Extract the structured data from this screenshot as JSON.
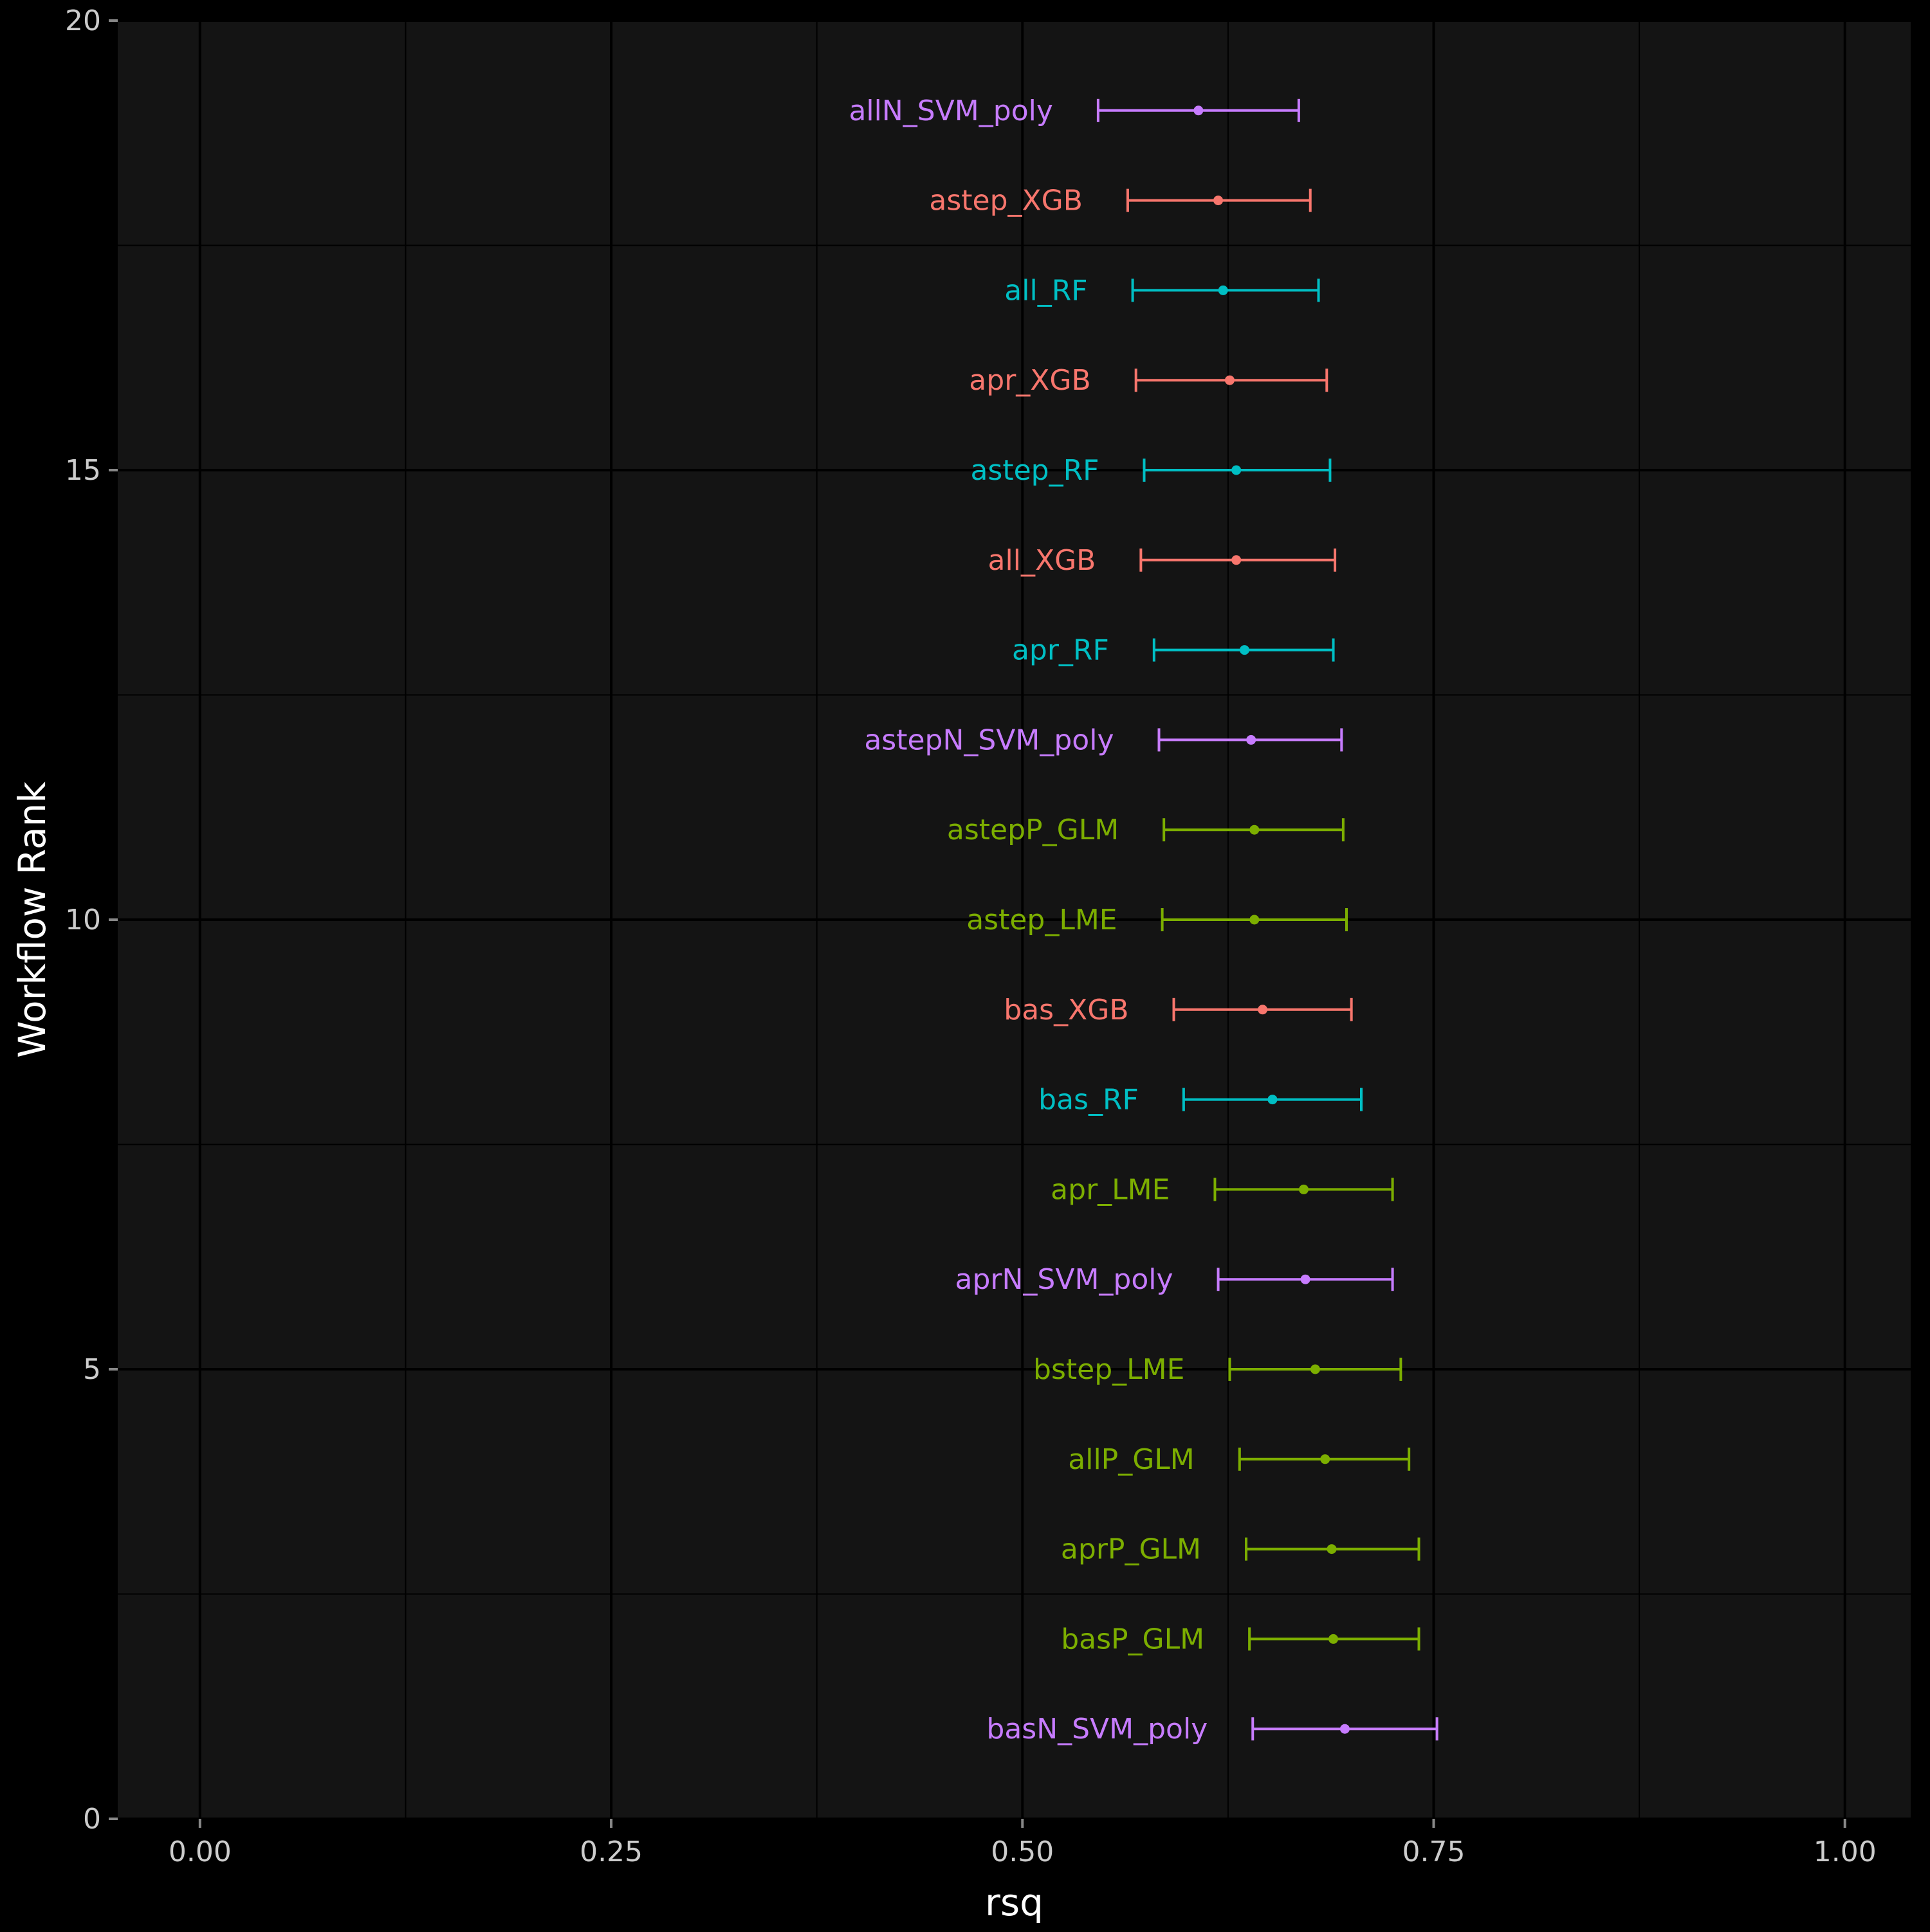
{
  "chart_data": {
    "type": "scatter",
    "subtype": "point-with-error-bars",
    "xlabel": "rsq",
    "ylabel": "Workflow Rank",
    "xlim": [
      -0.05,
      1.04
    ],
    "ylim": [
      0,
      20
    ],
    "x_ticks": [
      0.0,
      0.25,
      0.5,
      0.75,
      1.0
    ],
    "x_tick_labels": [
      "0.00",
      "0.25",
      "0.50",
      "0.75",
      "1.00"
    ],
    "y_ticks": [
      0,
      5,
      10,
      15,
      20
    ],
    "y_tick_labels": [
      "0",
      "5",
      "10",
      "15",
      "20"
    ],
    "grid": true,
    "legend": "none",
    "colors": {
      "XGB": "#F8766D",
      "RF": "#00BFC4",
      "SVM": "#C77CFF",
      "GLM_LME": "#7CAE00",
      "background": "#000000",
      "panel": "#141414",
      "text": "#cccccc"
    },
    "points": [
      {
        "rank": 1,
        "label": "basN_SVM_poly",
        "group": "SVM",
        "rsq": 0.696,
        "lower": 0.64,
        "upper": 0.752
      },
      {
        "rank": 2,
        "label": "basP_GLM",
        "group": "GLM_LME",
        "rsq": 0.689,
        "lower": 0.638,
        "upper": 0.741
      },
      {
        "rank": 3,
        "label": "aprP_GLM",
        "group": "GLM_LME",
        "rsq": 0.688,
        "lower": 0.636,
        "upper": 0.741
      },
      {
        "rank": 4,
        "label": "allP_GLM",
        "group": "GLM_LME",
        "rsq": 0.684,
        "lower": 0.632,
        "upper": 0.735
      },
      {
        "rank": 5,
        "label": "bstep_LME",
        "group": "GLM_LME",
        "rsq": 0.678,
        "lower": 0.626,
        "upper": 0.73
      },
      {
        "rank": 6,
        "label": "aprN_SVM_poly",
        "group": "SVM",
        "rsq": 0.672,
        "lower": 0.619,
        "upper": 0.725
      },
      {
        "rank": 7,
        "label": "apr_LME",
        "group": "GLM_LME",
        "rsq": 0.671,
        "lower": 0.617,
        "upper": 0.725
      },
      {
        "rank": 8,
        "label": "bas_RF",
        "group": "RF",
        "rsq": 0.652,
        "lower": 0.598,
        "upper": 0.706
      },
      {
        "rank": 9,
        "label": "bas_XGB",
        "group": "XGB",
        "rsq": 0.646,
        "lower": 0.592,
        "upper": 0.7
      },
      {
        "rank": 10,
        "label": "astep_LME",
        "group": "GLM_LME",
        "rsq": 0.641,
        "lower": 0.585,
        "upper": 0.697
      },
      {
        "rank": 11,
        "label": "astepP_GLM",
        "group": "GLM_LME",
        "rsq": 0.641,
        "lower": 0.586,
        "upper": 0.695
      },
      {
        "rank": 12,
        "label": "astepN_SVM_poly",
        "group": "SVM",
        "rsq": 0.639,
        "lower": 0.583,
        "upper": 0.694
      },
      {
        "rank": 13,
        "label": "apr_RF",
        "group": "RF",
        "rsq": 0.635,
        "lower": 0.58,
        "upper": 0.689
      },
      {
        "rank": 14,
        "label": "all_XGB",
        "group": "XGB",
        "rsq": 0.63,
        "lower": 0.572,
        "upper": 0.69
      },
      {
        "rank": 15,
        "label": "astep_RF",
        "group": "RF",
        "rsq": 0.63,
        "lower": 0.574,
        "upper": 0.687
      },
      {
        "rank": 16,
        "label": "apr_XGB",
        "group": "XGB",
        "rsq": 0.626,
        "lower": 0.569,
        "upper": 0.685
      },
      {
        "rank": 17,
        "label": "all_RF",
        "group": "RF",
        "rsq": 0.622,
        "lower": 0.567,
        "upper": 0.68
      },
      {
        "rank": 18,
        "label": "astep_XGB",
        "group": "XGB",
        "rsq": 0.619,
        "lower": 0.564,
        "upper": 0.675
      },
      {
        "rank": 19,
        "label": "allN_SVM_poly",
        "group": "SVM",
        "rsq": 0.607,
        "lower": 0.546,
        "upper": 0.668
      }
    ]
  }
}
